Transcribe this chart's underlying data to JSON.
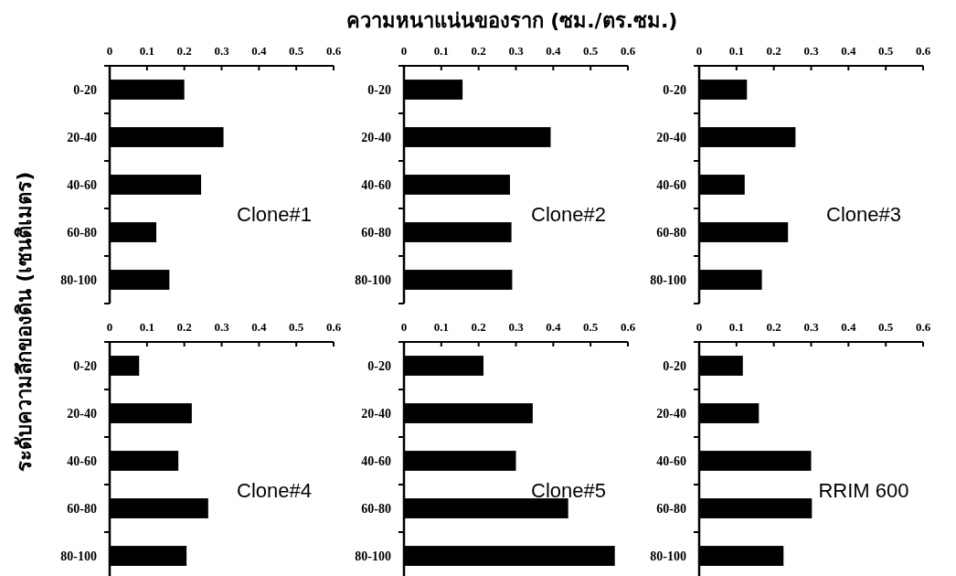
{
  "chart_data": [
    {
      "type": "bar",
      "orientation": "horizontal",
      "xlabel": "ความหนาแน่นของราก (ซม./ตร.ซม.)",
      "ylabel": "ระดับความลึกของดิน (เซนติเมตร)",
      "categories": [
        "0-20",
        "20-40",
        "40-60",
        "60-80",
        "80-100"
      ],
      "values": [
        0.2,
        0.305,
        0.245,
        0.125,
        0.16
      ],
      "color": "#000000",
      "xlim": [
        0,
        0.6
      ],
      "xticks": [
        0,
        0.1,
        0.2,
        0.3,
        0.4,
        0.5,
        0.6
      ],
      "annotations": [
        "Clone#1"
      ]
    },
    {
      "type": "bar",
      "orientation": "horizontal",
      "categories": [
        "0-20",
        "20-40",
        "40-60",
        "60-80",
        "80-100"
      ],
      "values": [
        0.157,
        0.393,
        0.284,
        0.288,
        0.29
      ],
      "color": "#000000",
      "xlim": [
        0,
        0.6
      ],
      "xticks": [
        0,
        0.1,
        0.2,
        0.3,
        0.4,
        0.5,
        0.6
      ],
      "annotations": [
        "Clone#2"
      ]
    },
    {
      "type": "bar",
      "orientation": "horizontal",
      "categories": [
        "0-20",
        "20-40",
        "40-60",
        "60-80",
        "80-100"
      ],
      "values": [
        0.128,
        0.258,
        0.122,
        0.238,
        0.168
      ],
      "color": "#000000",
      "xlim": [
        0,
        0.6
      ],
      "xticks": [
        0,
        0.1,
        0.2,
        0.3,
        0.4,
        0.5,
        0.6
      ],
      "annotations": [
        "Clone#3"
      ]
    },
    {
      "type": "bar",
      "orientation": "horizontal",
      "categories": [
        "0-20",
        "20-40",
        "40-60",
        "60-80",
        "80-100"
      ],
      "values": [
        0.079,
        0.22,
        0.184,
        0.264,
        0.206
      ],
      "color": "#000000",
      "xlim": [
        0,
        0.6
      ],
      "xticks": [
        0,
        0.1,
        0.2,
        0.3,
        0.4,
        0.5,
        0.6
      ],
      "annotations": [
        "Clone#4"
      ]
    },
    {
      "type": "bar",
      "orientation": "horizontal",
      "categories": [
        "0-20",
        "20-40",
        "40-60",
        "60-80",
        "80-100"
      ],
      "values": [
        0.213,
        0.345,
        0.3,
        0.44,
        0.565
      ],
      "color": "#000000",
      "xlim": [
        0,
        0.6
      ],
      "xticks": [
        0,
        0.1,
        0.2,
        0.3,
        0.4,
        0.5,
        0.6
      ],
      "annotations": [
        "Clone#5"
      ]
    },
    {
      "type": "bar",
      "orientation": "horizontal",
      "categories": [
        "0-20",
        "20-40",
        "40-60",
        "60-80",
        "80-100"
      ],
      "values": [
        0.117,
        0.16,
        0.3,
        0.302,
        0.226
      ],
      "color": "#000000",
      "xlim": [
        0,
        0.6
      ],
      "xticks": [
        0,
        0.1,
        0.2,
        0.3,
        0.4,
        0.5,
        0.6
      ],
      "annotations": [
        "RRIM 600"
      ]
    }
  ]
}
